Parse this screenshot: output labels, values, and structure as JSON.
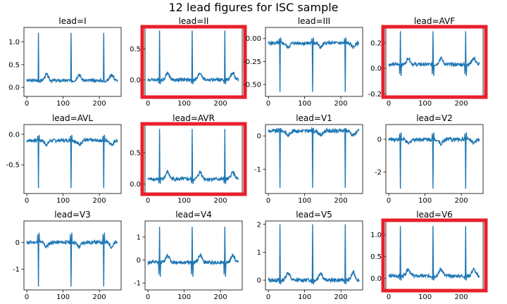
{
  "title": "12 lead figures for ISC sample",
  "colors": {
    "signal": "#1f77b4",
    "highlight": "#e8202a",
    "axis": "#000000"
  },
  "chart_data": [
    {
      "type": "line",
      "title": "lead=I",
      "xlim": [
        -8,
        260
      ],
      "ylim": [
        -0.2,
        1.32
      ],
      "xticks": [
        0,
        100,
        200
      ],
      "yticks": [
        0.0,
        0.5,
        1.0
      ],
      "ytick_labels": [
        "0.0",
        "0.5",
        "1.0"
      ],
      "baseline": 0.15,
      "peak": 1.2,
      "trough": 0.1,
      "highlighted": false
    },
    {
      "type": "line",
      "title": "lead=II",
      "xlim": [
        -8,
        260
      ],
      "ylim": [
        -0.27,
        0.85
      ],
      "xticks": [
        0,
        100,
        200
      ],
      "yticks": [
        0.0,
        0.5
      ],
      "ytick_labels": [
        "0.0",
        "0.5"
      ],
      "baseline": 0.0,
      "peak": 0.8,
      "trough": -0.12,
      "highlighted": true
    },
    {
      "type": "line",
      "title": "lead=III",
      "xlim": [
        -8,
        260
      ],
      "ylim": [
        -0.63,
        0.12
      ],
      "xticks": [
        0,
        100,
        200
      ],
      "yticks": [
        0.0,
        -0.25,
        -0.5
      ],
      "ytick_labels": [
        "0.00",
        "-0.25",
        "-0.50"
      ],
      "baseline": -0.05,
      "peak": 0.05,
      "trough": -0.58,
      "highlighted": false
    },
    {
      "type": "line",
      "title": "lead=AVF",
      "xlim": [
        -8,
        260
      ],
      "ylim": [
        -0.22,
        0.32
      ],
      "xticks": [
        0,
        100,
        200
      ],
      "yticks": [
        0.2,
        0.0,
        -0.2
      ],
      "ytick_labels": [
        "0.2",
        "0.0",
        "-0.2"
      ],
      "baseline": 0.03,
      "peak": 0.29,
      "trough": -0.12,
      "highlighted": true
    },
    {
      "type": "line",
      "title": "lead=AVL",
      "xlim": [
        -8,
        260
      ],
      "ylim": [
        -0.97,
        0.16
      ],
      "xticks": [
        0,
        100,
        200
      ],
      "yticks": [
        0.0,
        -0.5
      ],
      "ytick_labels": [
        "0.0",
        "-0.5"
      ],
      "baseline": -0.1,
      "peak": 0.05,
      "trough": -0.88,
      "highlighted": false
    },
    {
      "type": "line",
      "title": "lead=AVR",
      "xlim": [
        -8,
        260
      ],
      "ylim": [
        -0.15,
        0.95
      ],
      "xticks": [
        0,
        100,
        200
      ],
      "yticks": [
        0.0,
        0.5
      ],
      "ytick_labels": [
        "0.0",
        "0.5"
      ],
      "baseline": 0.08,
      "peak": 0.88,
      "trough": -0.05,
      "highlighted": true
    },
    {
      "type": "line",
      "title": "lead=V1",
      "xlim": [
        -8,
        260
      ],
      "ylim": [
        -1.72,
        0.34
      ],
      "xticks": [
        0,
        100,
        200
      ],
      "yticks": [
        0,
        -1
      ],
      "ytick_labels": [
        "0",
        "-1"
      ],
      "baseline": 0.15,
      "peak": 0.3,
      "trough": -1.55,
      "highlighted": false
    },
    {
      "type": "line",
      "title": "lead=V2",
      "xlim": [
        -8,
        260
      ],
      "ylim": [
        -3.3,
        0.9
      ],
      "xticks": [
        0,
        100,
        200
      ],
      "yticks": [
        0,
        -2
      ],
      "ytick_labels": [
        "0",
        "-2"
      ],
      "baseline": 0.0,
      "peak": 0.7,
      "trough": -3.0,
      "highlighted": false
    },
    {
      "type": "line",
      "title": "lead=V3",
      "xlim": [
        -8,
        260
      ],
      "ylim": [
        -1.78,
        0.8
      ],
      "xticks": [
        0,
        100,
        200
      ],
      "yticks": [
        0,
        -1
      ],
      "ytick_labels": [
        "0",
        "-1"
      ],
      "baseline": 0.0,
      "peak": 0.6,
      "trough": -1.65,
      "highlighted": false
    },
    {
      "type": "line",
      "title": "lead=V4",
      "xlim": [
        -8,
        260
      ],
      "ylim": [
        -1.3,
        1.7
      ],
      "xticks": [
        0,
        100,
        200
      ],
      "yticks": [
        1,
        0,
        -1
      ],
      "ytick_labels": [
        "1",
        "0",
        "-1"
      ],
      "baseline": -0.1,
      "peak": 1.45,
      "trough": -1.15,
      "highlighted": false
    },
    {
      "type": "line",
      "title": "lead=V5",
      "xlim": [
        -8,
        260
      ],
      "ylim": [
        -0.35,
        2.12
      ],
      "xticks": [
        0,
        100,
        200
      ],
      "yticks": [
        2,
        1,
        0
      ],
      "ytick_labels": [
        "2",
        "1",
        "0"
      ],
      "baseline": 0.0,
      "peak": 2.0,
      "trough": -0.25,
      "highlighted": false
    },
    {
      "type": "line",
      "title": "lead=V6",
      "xlim": [
        -8,
        260
      ],
      "ylim": [
        -0.27,
        1.32
      ],
      "xticks": [
        0,
        100,
        200
      ],
      "yticks": [
        1.0,
        0.5,
        0.0
      ],
      "ytick_labels": [
        "1.0",
        "0.5",
        "0.0"
      ],
      "baseline": 0.05,
      "peak": 1.2,
      "trough": -0.12,
      "highlighted": true
    }
  ]
}
